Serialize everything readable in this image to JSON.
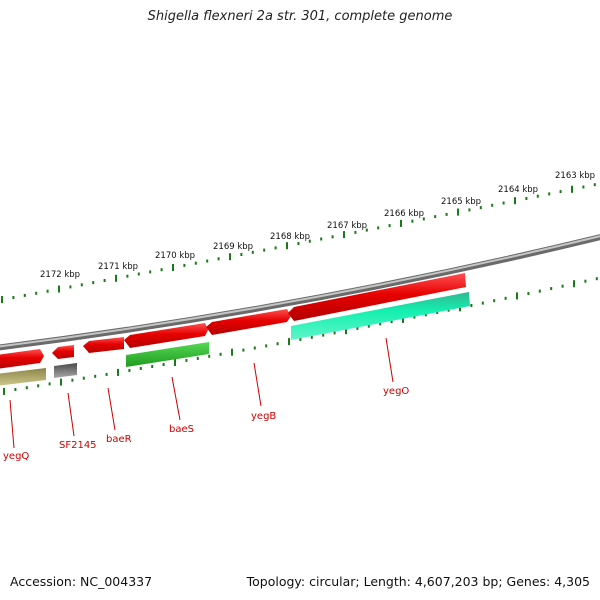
{
  "title": "Shigella flexneri 2a str. 301, complete genome",
  "footer": {
    "accession": "Accession: NC_004337",
    "stats": "Topology: circular; Length: 4,607,203 bp; Genes: 4,305"
  },
  "ruler_labels": [
    "2163 kbp",
    "2164 kbp",
    "2165 kbp",
    "2166 kbp",
    "2167 kbp",
    "2168 kbp",
    "2169 kbp",
    "2170 kbp",
    "2171 kbp",
    "2172 kbp"
  ],
  "genes": [
    {
      "name": "yegQ",
      "strand": "forward",
      "color": "#e60000"
    },
    {
      "name": "SF2145",
      "strand": "forward",
      "color": "#e60000"
    },
    {
      "name": "baeR",
      "strand": "forward",
      "color": "#e60000"
    },
    {
      "name": "baeS",
      "strand": "forward",
      "color": "#e60000"
    },
    {
      "name": "yegB",
      "strand": "forward",
      "color": "#e60000"
    },
    {
      "name": "yegO",
      "strand": "forward",
      "color": "#e60000"
    }
  ],
  "features": [
    {
      "kind": "olive",
      "color": "#b5ad6a"
    },
    {
      "kind": "gray",
      "color": "#7a7a7a"
    },
    {
      "kind": "green",
      "color": "#2db82d"
    },
    {
      "kind": "teal",
      "color": "#14e6a6"
    }
  ],
  "colors": {
    "backbone": "#8c8c8c",
    "ruler": "#1a7a1a",
    "label": "#cc0000"
  }
}
